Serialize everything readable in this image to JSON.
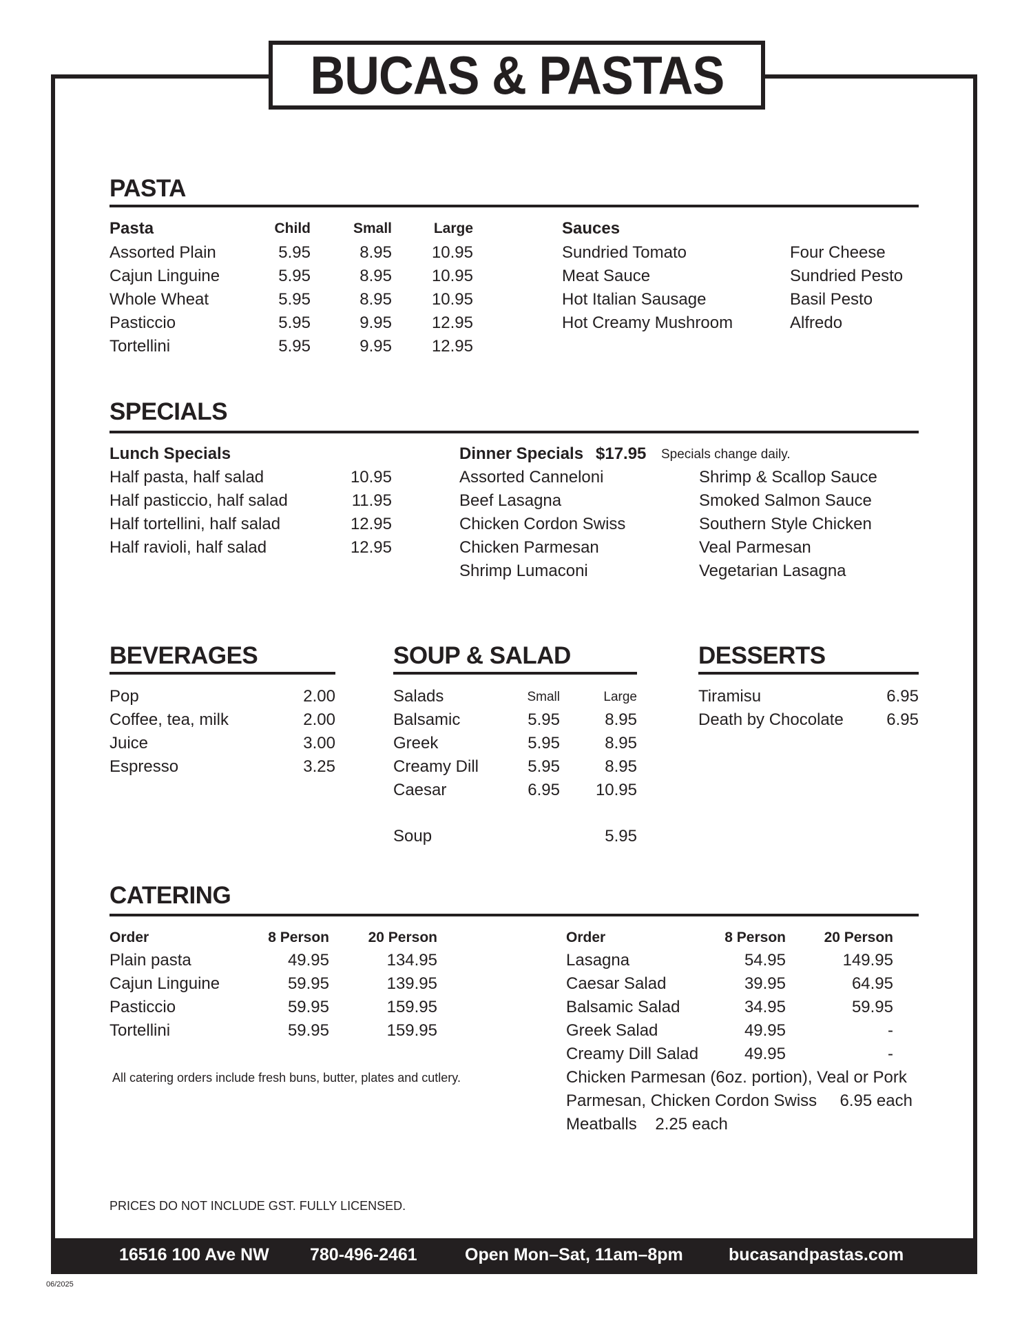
{
  "title": "BUCAS & PASTAS",
  "pasta": {
    "heading": "PASTA",
    "headers": [
      "Pasta",
      "Child",
      "Small",
      "Large"
    ],
    "items": [
      {
        "name": "Assorted Plain",
        "child": "5.95",
        "small": "8.95",
        "large": "10.95"
      },
      {
        "name": "Cajun Linguine",
        "child": "5.95",
        "small": "8.95",
        "large": "10.95"
      },
      {
        "name": "Whole Wheat",
        "child": "5.95",
        "small": "8.95",
        "large": "10.95"
      },
      {
        "name": "Pasticcio",
        "child": "5.95",
        "small": "9.95",
        "large": "12.95"
      },
      {
        "name": "Tortellini",
        "child": "5.95",
        "small": "9.95",
        "large": "12.95"
      }
    ],
    "sauces_heading": "Sauces",
    "sauces_col1": [
      "Sundried Tomato",
      "Meat Sauce",
      "Hot Italian Sausage",
      "Hot Creamy Mushroom"
    ],
    "sauces_col2": [
      "Four Cheese",
      "Sundried Pesto",
      "Basil Pesto",
      "Alfredo"
    ]
  },
  "specials": {
    "heading": "SPECIALS",
    "lunch_heading": "Lunch Specials",
    "lunch": [
      {
        "name": "Half pasta, half salad",
        "price": "10.95"
      },
      {
        "name": "Half pasticcio, half salad",
        "price": "11.95"
      },
      {
        "name": "Half tortellini, half salad",
        "price": "12.95"
      },
      {
        "name": "Half ravioli, half salad",
        "price": "12.95"
      }
    ],
    "dinner_heading": "Dinner Specials",
    "dinner_price": "$17.95",
    "dinner_note": "Specials change daily.",
    "dinner_col1": [
      "Assorted Canneloni",
      "Beef Lasagna",
      "Chicken Cordon Swiss",
      "Chicken Parmesan",
      "Shrimp Lumaconi"
    ],
    "dinner_col2": [
      "Shrimp & Scallop Sauce",
      "Smoked Salmon Sauce",
      "Southern Style Chicken",
      "Veal Parmesan",
      "Vegetarian Lasagna"
    ]
  },
  "beverages": {
    "heading": "BEVERAGES",
    "items": [
      {
        "name": "Pop",
        "price": "2.00"
      },
      {
        "name": "Coffee, tea, milk",
        "price": "2.00"
      },
      {
        "name": "Juice",
        "price": "3.00"
      },
      {
        "name": "Espresso",
        "price": "3.25"
      }
    ]
  },
  "soup_salad": {
    "heading": "SOUP & SALAD",
    "headers": [
      "Salads",
      "Small",
      "Large"
    ],
    "items": [
      {
        "name": "Balsamic",
        "small": "5.95",
        "large": "8.95"
      },
      {
        "name": "Greek",
        "small": "5.95",
        "large": "8.95"
      },
      {
        "name": "Creamy Dill",
        "small": "5.95",
        "large": "8.95"
      },
      {
        "name": "Caesar",
        "small": "6.95",
        "large": "10.95"
      }
    ],
    "soup": {
      "name": "Soup",
      "price": "5.95"
    }
  },
  "desserts": {
    "heading": "DESSERTS",
    "items": [
      {
        "name": "Tiramisu",
        "price": "6.95"
      },
      {
        "name": "Death by Chocolate",
        "price": "6.95"
      }
    ]
  },
  "catering": {
    "heading": "CATERING",
    "headers": [
      "Order",
      "8 Person",
      "20 Person"
    ],
    "left": [
      {
        "name": "Plain pasta",
        "p8": "49.95",
        "p20": "134.95"
      },
      {
        "name": "Cajun Linguine",
        "p8": "59.95",
        "p20": "139.95"
      },
      {
        "name": "Pasticcio",
        "p8": "59.95",
        "p20": "159.95"
      },
      {
        "name": "Tortellini",
        "p8": "59.95",
        "p20": "159.95"
      }
    ],
    "right": [
      {
        "name": "Lasagna",
        "p8": "54.95",
        "p20": "149.95"
      },
      {
        "name": "Caesar Salad",
        "p8": "39.95",
        "p20": "64.95"
      },
      {
        "name": "Balsamic Salad",
        "p8": "34.95",
        "p20": "59.95"
      },
      {
        "name": "Greek Salad",
        "p8": "49.95",
        "p20": "-"
      },
      {
        "name": "Creamy Dill Salad",
        "p8": "49.95",
        "p20": "-"
      }
    ],
    "note": "All catering orders include fresh buns, butter, plates and cutlery.",
    "extra_lines": [
      "Chicken Parmesan (6oz. portion), Veal or Pork",
      "Parmesan, Chicken Cordon Swiss     6.95 each",
      "Meatballs    2.25 each"
    ]
  },
  "disclaimer": "PRICES DO NOT INCLUDE GST. FULLY LICENSED.",
  "footer": {
    "address": "16516 100 Ave NW",
    "phone": "780-496-2461",
    "hours": "Open Mon–Sat, 11am–8pm",
    "website": "bucasandpastas.com"
  },
  "date_code": "06/2025"
}
